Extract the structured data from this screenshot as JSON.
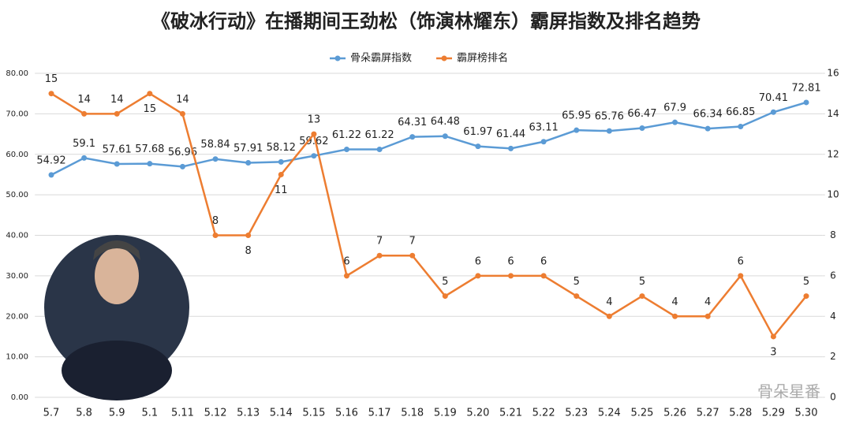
{
  "chart_data": {
    "type": "line",
    "title": "《破冰行动》在播期间王劲松（饰演林耀东）霸屏指数及排名趋势",
    "categories": [
      "5.7",
      "5.8",
      "5.9",
      "5.1",
      "5.11",
      "5.12",
      "5.13",
      "5.14",
      "5.15",
      "5.16",
      "5.17",
      "5.18",
      "5.19",
      "5.20",
      "5.21",
      "5.22",
      "5.23",
      "5.24",
      "5.25",
      "5.26",
      "5.27",
      "5.28",
      "5.29",
      "5.30"
    ],
    "series": [
      {
        "name": "骨朵霸屏指数",
        "color": "#5b9bd5",
        "axis": "y",
        "values": [
          54.92,
          59.1,
          57.61,
          57.68,
          56.96,
          58.84,
          57.91,
          58.12,
          59.62,
          61.22,
          61.22,
          64.31,
          64.48,
          61.97,
          61.44,
          63.11,
          65.95,
          65.76,
          66.47,
          67.9,
          66.34,
          66.85,
          70.41,
          72.81
        ]
      },
      {
        "name": "霸屏榜排名",
        "color": "#ed7d31",
        "axis": "y2",
        "values": [
          15,
          14,
          14,
          15,
          14,
          8,
          8,
          11,
          13,
          6,
          7,
          7,
          5,
          6,
          6,
          6,
          5,
          4,
          5,
          4,
          4,
          6,
          3,
          5
        ]
      }
    ],
    "ylim": [
      0,
      80
    ],
    "yticks": [
      {
        "value": 0,
        "label": "0.00"
      },
      {
        "value": 10,
        "label": "10.00"
      },
      {
        "value": 20,
        "label": "20.00"
      },
      {
        "value": 30,
        "label": "30.00"
      },
      {
        "value": 40,
        "label": "40.00"
      },
      {
        "value": 50,
        "label": "50.00"
      },
      {
        "value": 60,
        "label": "60.00"
      },
      {
        "value": 70,
        "label": "70.00"
      },
      {
        "value": 80,
        "label": "80.00"
      }
    ],
    "y2lim": [
      0,
      16
    ],
    "y2ticks": [
      0,
      2,
      4,
      6,
      8,
      10,
      12,
      14,
      16
    ],
    "grid": true,
    "legend": "top",
    "watermark": "骨朵星番"
  }
}
